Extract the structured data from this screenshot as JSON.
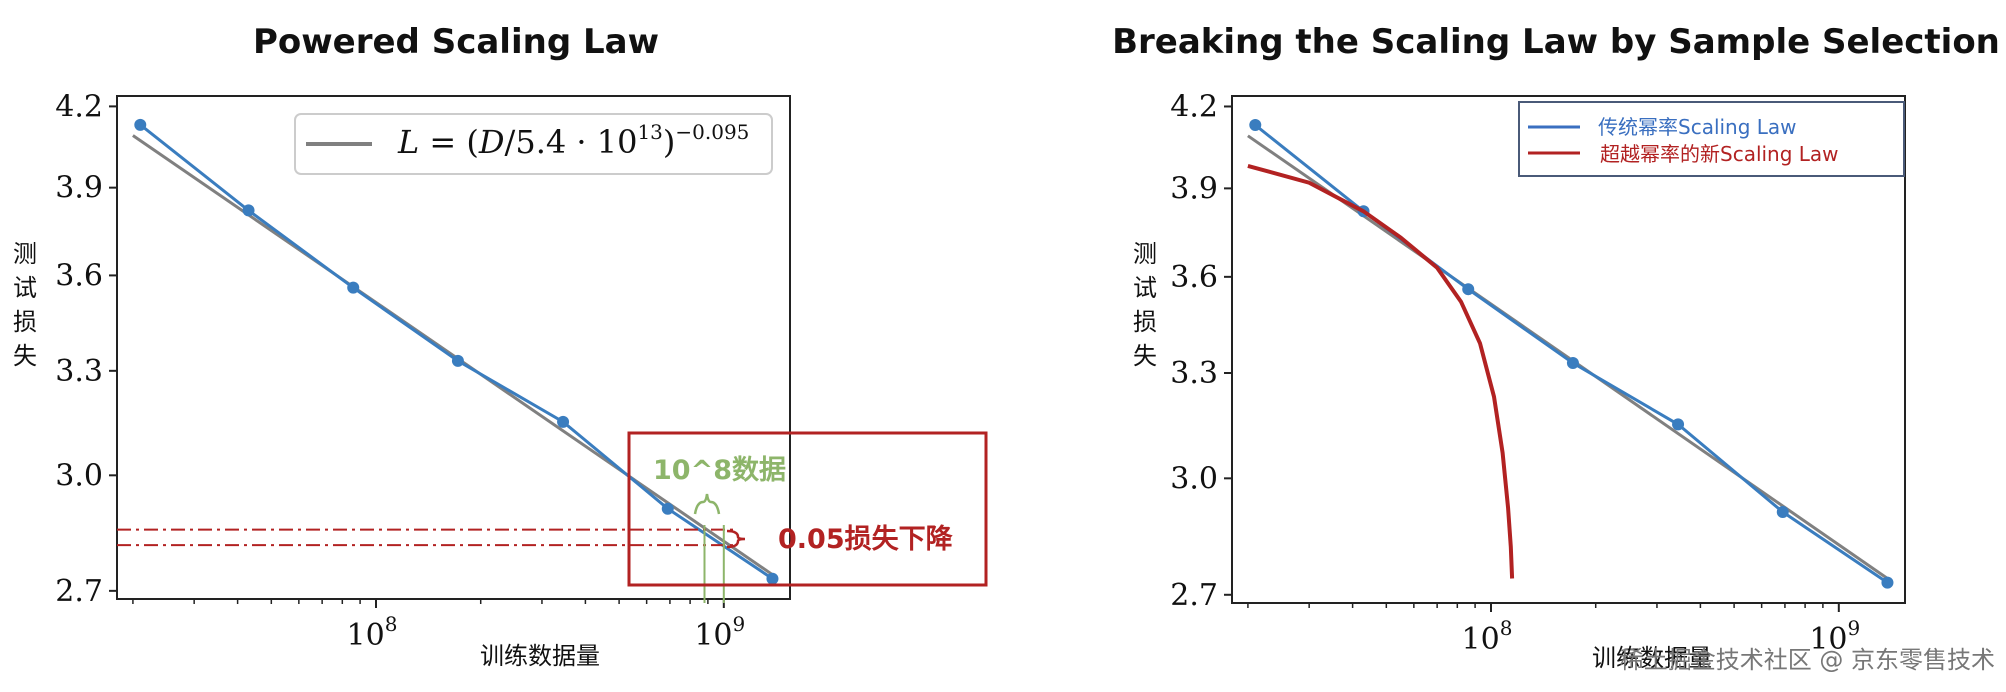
{
  "chart_data": [
    {
      "type": "line",
      "title": "Powered Scaling Law",
      "xlabel": "训练数据量",
      "ylabel": "测试损失",
      "x_scale": "log",
      "y_scale": "log",
      "xlim": [
        18000000.0,
        1550000000.0
      ],
      "ylim": [
        2.68,
        4.24
      ],
      "xticks": [
        {
          "value": 100000000.0,
          "label": "10^8"
        },
        {
          "value": 1000000000.0,
          "label": "10^9"
        }
      ],
      "yticks": [
        4.2,
        3.9,
        3.6,
        3.3,
        3.0,
        2.7
      ],
      "ytick_labels": [
        "4.2",
        "3.9",
        "3.6",
        "3.3",
        "3.0",
        "2.7"
      ],
      "series": [
        {
          "role": "observed",
          "color": "#3a7dbf",
          "x": [
            21000000.0,
            43000000.0,
            86000000.0,
            172000000.0,
            345000000.0,
            690000000.0,
            1380000000.0
          ],
          "y": [
            4.13,
            3.82,
            3.56,
            3.33,
            3.15,
            2.91,
            2.73
          ]
        },
        {
          "name": "L = (D/5.4·10^13)^-0.095",
          "role": "fit",
          "color": "#808080",
          "x": [
            20000000.0,
            1380000000.0
          ],
          "y": [
            4.09,
            2.74
          ]
        }
      ],
      "legend": {
        "position": "top-right",
        "formula": [
          "L",
          " = (",
          "D",
          "/5.4 · 10",
          "13",
          ")",
          "−0.095"
        ]
      },
      "annotations": {
        "data_label": "10^8数据",
        "loss_label": "0.05损失下降",
        "loss_lines_y": [
          2.855,
          2.815
        ],
        "data_lines_x": [
          880000000.0,
          1000000000.0
        ],
        "box_color": "#b22222",
        "green_color": "#8db56a"
      }
    },
    {
      "type": "line",
      "title": "Breaking the Scaling Law by Sample Selection",
      "xlabel": "训练数据量",
      "ylabel": "测试损失",
      "x_scale": "log",
      "y_scale": "log",
      "xlim": [
        18000000.0,
        1550000000.0
      ],
      "ylim": [
        2.68,
        4.24
      ],
      "xticks": [
        {
          "value": 100000000.0,
          "label": "10^8"
        },
        {
          "value": 1000000000.0,
          "label": "10^9"
        }
      ],
      "yticks": [
        4.2,
        3.9,
        3.6,
        3.3,
        3.0,
        2.7
      ],
      "ytick_labels": [
        "4.2",
        "3.9",
        "3.6",
        "3.3",
        "3.0",
        "2.7"
      ],
      "series": [
        {
          "role": "observed",
          "color": "#3a7dbf",
          "x": [
            21000000.0,
            43000000.0,
            86000000.0,
            172000000.0,
            345000000.0,
            690000000.0,
            1380000000.0
          ],
          "y": [
            4.13,
            3.82,
            3.56,
            3.33,
            3.15,
            2.91,
            2.73
          ]
        },
        {
          "role": "fit",
          "color": "#808080",
          "x": [
            20000000.0,
            1380000000.0
          ],
          "y": [
            4.09,
            2.74
          ]
        },
        {
          "name": "超越幂率的新Scaling Law",
          "color": "#b22222",
          "x": [
            20000000.0,
            30000000.0,
            43000000.0,
            55000000.0,
            70000000.0,
            82000000.0,
            93000000.0,
            102000000.0,
            108000000.0,
            112000000.0,
            114000000.0,
            115000000.0
          ],
          "y": [
            3.98,
            3.92,
            3.82,
            3.73,
            3.63,
            3.52,
            3.39,
            3.23,
            3.07,
            2.92,
            2.82,
            2.74
          ]
        }
      ],
      "legend": {
        "position": "top-right",
        "entries": [
          {
            "label": "传统幂率Scaling Law",
            "color": "#3a6fc0"
          },
          {
            "label": "超越幂率的新Scaling Law",
            "color": "#b22222"
          }
        ]
      }
    }
  ],
  "watermark": "稀土掘金技术社区 @ 京东零售技术"
}
